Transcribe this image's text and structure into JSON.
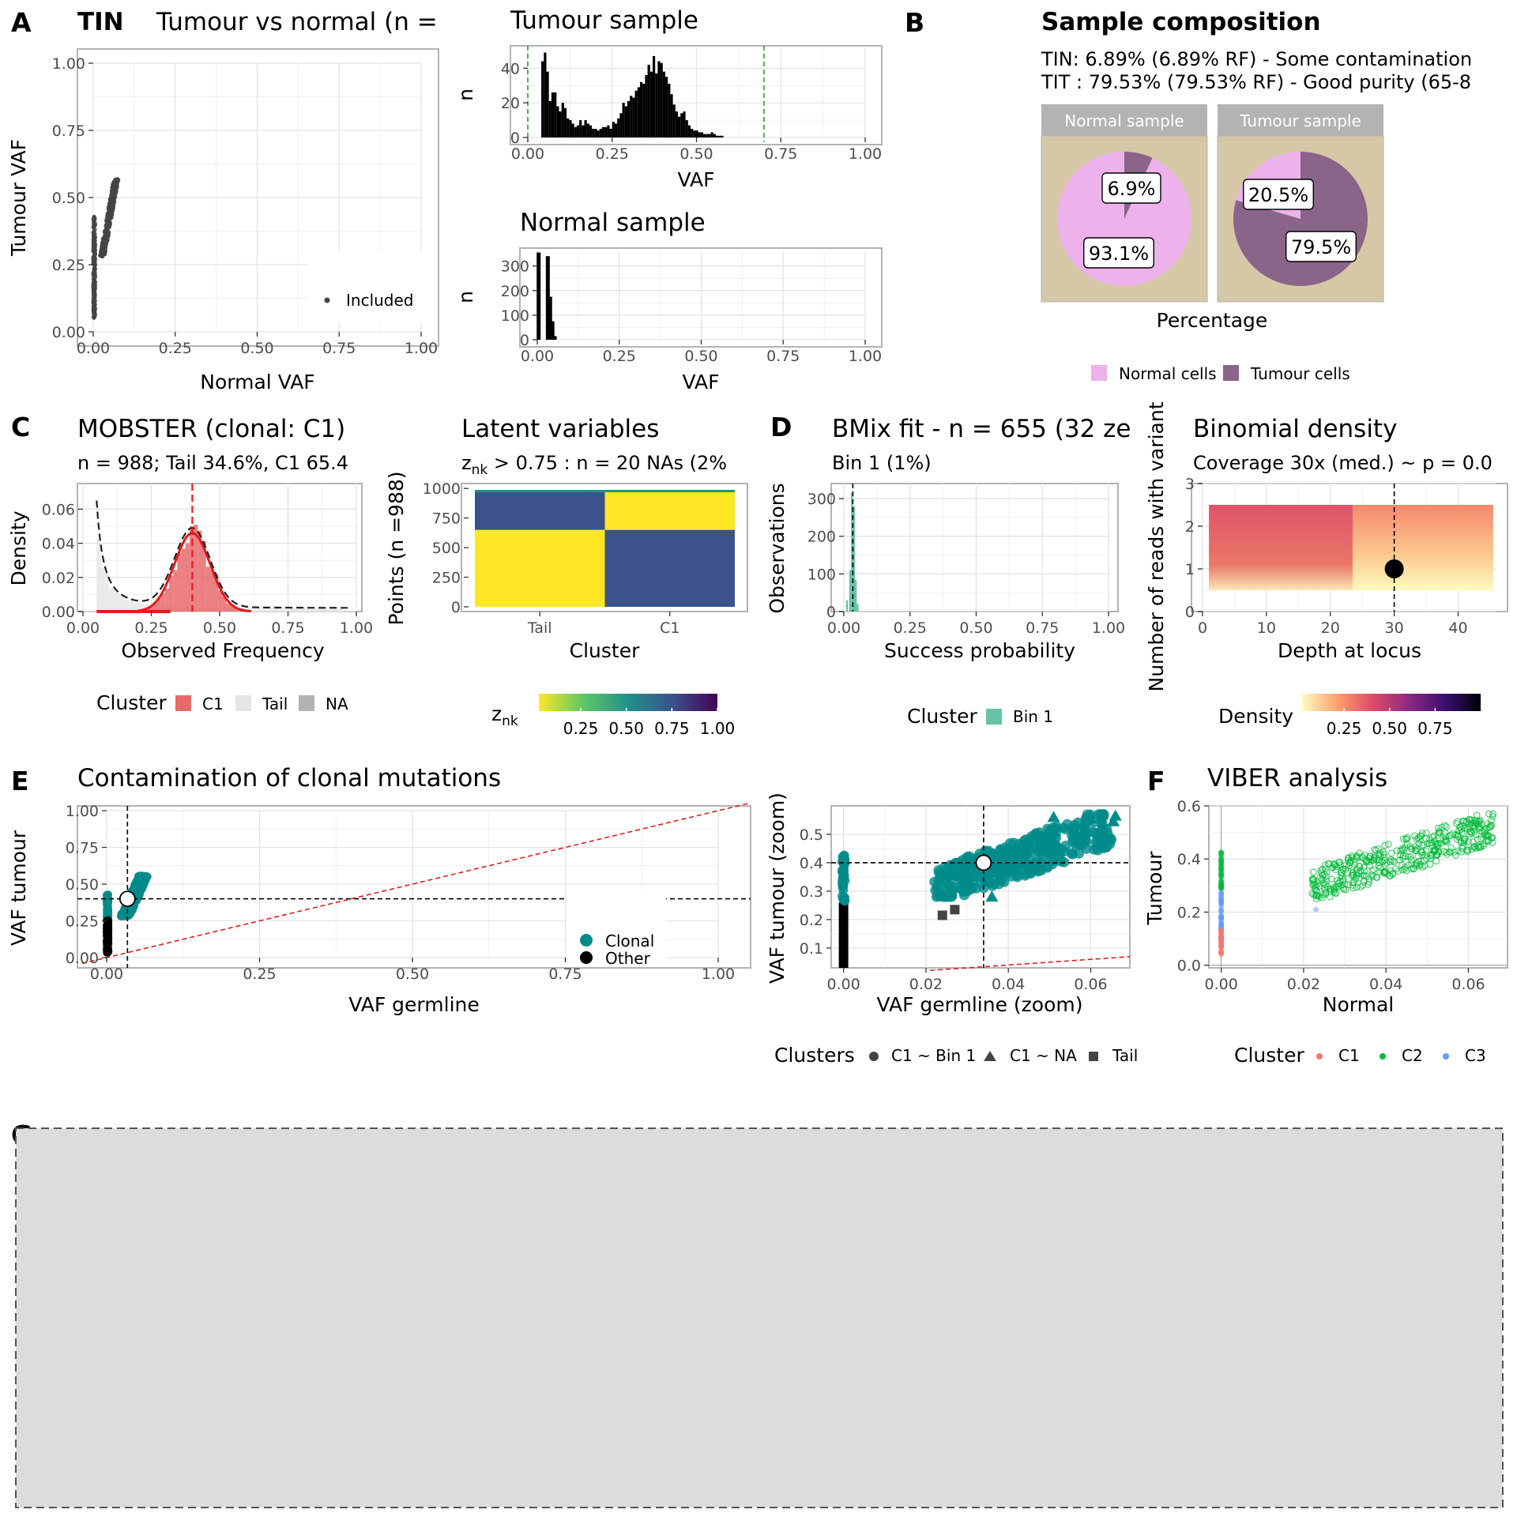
{
  "panel_tags": [
    "A",
    "B",
    "C",
    "D",
    "E",
    "F",
    "G"
  ],
  "chart_data": [
    {
      "id": "A1",
      "type": "scatter",
      "tag_label": "TIN",
      "title": "Tumour vs normal (n =",
      "xlabel": "Normal VAF",
      "ylabel": "Tumour VAF",
      "xlim": [
        0,
        1
      ],
      "ylim": [
        0,
        1
      ],
      "xticks": [
        "0.00",
        "0.25",
        "0.50",
        "0.75",
        "1.00"
      ],
      "yticks": [
        "0.00",
        "0.25",
        "0.50",
        "0.75",
        "1.00"
      ],
      "grid": true,
      "legend_entries": [
        "Included"
      ],
      "legend_position": "bottom-right",
      "point_color": "#444444",
      "point_groups": [
        {
          "x_range": [
            0.0,
            0.006
          ],
          "y_range": [
            0.05,
            0.43
          ],
          "n": 260
        },
        {
          "x_range": [
            0.02,
            0.07
          ],
          "y_range": [
            0.28,
            0.57
          ],
          "n": 420
        }
      ]
    },
    {
      "id": "A2",
      "type": "bar",
      "title": "Tumour sample",
      "xlabel": "VAF",
      "ylabel": "n",
      "xlim": [
        0,
        1
      ],
      "ylim": [
        0,
        52
      ],
      "xticks": [
        "0.00",
        "0.25",
        "0.50",
        "0.75",
        "1.00"
      ],
      "yticks": [
        "0",
        "20",
        "40"
      ],
      "grid": true,
      "vlines": [
        0.0,
        0.7
      ],
      "vline_color": "#2ca02c",
      "bar_color": "#000000",
      "bin_start": 0.04,
      "bin_width": 0.0075,
      "values": [
        44,
        49,
        38,
        21,
        26,
        26,
        18,
        15,
        20,
        17,
        11,
        10,
        8,
        6,
        7,
        10,
        7,
        10,
        8,
        7,
        5,
        5,
        4,
        5,
        6,
        6,
        7,
        5,
        9,
        8,
        11,
        14,
        20,
        18,
        21,
        24,
        23,
        27,
        29,
        32,
        31,
        36,
        42,
        38,
        47,
        37,
        44,
        43,
        38,
        35,
        31,
        25,
        19,
        15,
        12,
        14,
        15,
        10,
        7,
        5,
        4,
        4,
        3,
        3,
        2,
        2,
        2,
        3,
        2,
        1,
        1,
        1
      ]
    },
    {
      "id": "A3",
      "type": "bar",
      "title": "Normal sample",
      "xlabel": "VAF",
      "ylabel": "n",
      "xlim": [
        0,
        1
      ],
      "ylim": [
        0,
        360
      ],
      "xticks": [
        "0.00",
        "0.25",
        "0.50",
        "0.75",
        "1.00"
      ],
      "yticks": [
        "0",
        "100",
        "200",
        "300"
      ],
      "grid": true,
      "bar_color": "#000000",
      "bars": [
        {
          "x": 0.003,
          "value": 355
        },
        {
          "x": 0.017,
          "value": 0
        },
        {
          "x": 0.031,
          "value": 340
        },
        {
          "x": 0.038,
          "value": 175
        },
        {
          "x": 0.045,
          "value": 75
        },
        {
          "x": 0.052,
          "value": 15
        }
      ]
    },
    {
      "id": "B",
      "type": "pie",
      "title": "Sample composition",
      "subtitle_lines": [
        "TIN: 6.89% (6.89% RF) - Some contamination",
        "TIT : 79.53% (79.53% RF) - Good purity (65-8"
      ],
      "xlabel": "Percentage",
      "legend_entries": [
        {
          "label": "Normal cells",
          "color": "#EDB1EC"
        },
        {
          "label": "Tumour cells",
          "color": "#8A6489"
        }
      ],
      "legend_position": "bottom",
      "facets": [
        {
          "name": "Normal sample",
          "slices": [
            {
              "label": "Tumour cells",
              "value": 6.9,
              "text": "6.9%"
            },
            {
              "label": "Normal cells",
              "value": 93.1,
              "text": "93.1%"
            }
          ]
        },
        {
          "name": "Tumour sample",
          "slices": [
            {
              "label": "Tumour cells",
              "value": 79.5,
              "text": "79.5%"
            },
            {
              "label": "Normal cells",
              "value": 20.5,
              "text": "20.5%"
            }
          ]
        }
      ],
      "panel_background": "#D6C7A7",
      "strip_color": "#B3B3B3"
    },
    {
      "id": "C1",
      "type": "area",
      "title": "MOBSTER (clonal: C1)",
      "subtitle": "n = 988; Tail 34.6%, C1 65.4",
      "xlabel": "Observed Frequency",
      "ylabel": "Density",
      "xlim": [
        0,
        1
      ],
      "ylim": [
        0,
        0.075
      ],
      "xticks": [
        "0.00",
        "0.25",
        "0.50",
        "0.75",
        "1.00"
      ],
      "yticks": [
        "0.00",
        "0.02",
        "0.04",
        "0.06"
      ],
      "grid": true,
      "vline": 0.4,
      "vline_color": "#e41a1c",
      "legend_title": "Cluster",
      "legend_entries": [
        {
          "label": "C1",
          "color": "#E8696B"
        },
        {
          "label": "Tail",
          "color": "#E6E6E6"
        },
        {
          "label": "NA",
          "color": "#B3B3B3"
        }
      ],
      "legend_position": "bottom",
      "tail": {
        "x_min": 0.05,
        "scale": 0.07
      },
      "c1": {
        "mean": 0.4,
        "sd": 0.065,
        "peak": 0.046
      }
    },
    {
      "id": "C2",
      "type": "heatmap",
      "title": "Latent variables",
      "subtitle_main": "z",
      "subtitle_sub": "nk",
      "subtitle_rest": " > 0.75 : n = 20  NAs (2%",
      "xlabel": "Cluster",
      "ylabel": "Points (n =988)",
      "categories": [
        "Tail",
        "C1"
      ],
      "ylim": [
        0,
        988
      ],
      "yticks": [
        "0",
        "250",
        "500",
        "750",
        "1000"
      ],
      "legend_title_main": "z",
      "legend_title_sub": "nk",
      "legend_ticks": [
        "0.25",
        "0.50",
        "0.75",
        "1.00"
      ],
      "colorbar": [
        "#FDE725",
        "#5DC863",
        "#21908C",
        "#3B528B",
        "#440154"
      ],
      "blocks": [
        {
          "rows": [
            0,
            650
          ],
          "values": [
            0.02,
            0.98
          ]
        },
        {
          "rows": [
            650,
            968
          ],
          "values": [
            0.98,
            0.02
          ]
        },
        {
          "rows": [
            968,
            988
          ],
          "values": [
            0.5,
            0.5
          ]
        }
      ]
    },
    {
      "id": "D1",
      "type": "bar",
      "title": "BMix fit - n = 655 (32 ze",
      "subtitle": "Bin 1 (1%)",
      "xlabel": "Success probability",
      "ylabel": "Observations",
      "xlim": [
        0,
        1
      ],
      "ylim": [
        0,
        340
      ],
      "xticks": [
        "0.00",
        "0.25",
        "0.50",
        "0.75",
        "1.00"
      ],
      "yticks": [
        "0",
        "100",
        "200",
        "300"
      ],
      "grid": true,
      "vline": 0.034,
      "bar_color": "#66C2A5",
      "legend_title": "Cluster",
      "legend_entries": [
        {
          "label": "Bin 1",
          "color": "#66C2A5"
        }
      ],
      "legend_position": "bottom",
      "bars": [
        {
          "x": 0.012,
          "value": 30
        },
        {
          "x": 0.024,
          "value": 110
        },
        {
          "x": 0.031,
          "value": 315
        },
        {
          "x": 0.038,
          "value": 280
        },
        {
          "x": 0.045,
          "value": 85
        },
        {
          "x": 0.052,
          "value": 20
        }
      ]
    },
    {
      "id": "D2",
      "type": "heatmap",
      "title": "Binomial density",
      "subtitle": "Coverage 30x (med.) ~ p = 0.0",
      "xlabel": "Depth at locus",
      "ylabel": "Number of reads with variant",
      "xlim": [
        0,
        46
      ],
      "ylim": [
        0,
        3
      ],
      "xticks": [
        "0",
        "10",
        "20",
        "30",
        "40"
      ],
      "yticks": [
        "0",
        "1",
        "2",
        "3"
      ],
      "grid": true,
      "point": {
        "x": 30,
        "y": 1
      },
      "vline": 30,
      "legend_title": "Density",
      "legend_ticks": [
        "0.25",
        "0.50",
        "0.75"
      ],
      "colorbar": [
        "#FCFDBF",
        "#FE9F6D",
        "#DE4968",
        "#8C2981",
        "#3B0F70",
        "#000004"
      ],
      "legend_position": "bottom"
    },
    {
      "id": "E1",
      "type": "scatter",
      "title": "Contamination of clonal mutations",
      "xlabel": "VAF germline",
      "ylabel": "VAF tumour",
      "xlim": [
        0,
        1
      ],
      "ylim": [
        0,
        1
      ],
      "xticks": [
        "0.00",
        "0.25",
        "0.50",
        "0.75",
        "1.00"
      ],
      "yticks": [
        "0.00",
        "0.25",
        "0.50",
        "0.75",
        "1.00"
      ],
      "grid": true,
      "hline": 0.4,
      "vline": 0.034,
      "diagonal": true,
      "centroid": {
        "x": 0.034,
        "y": 0.4
      },
      "legend_entries": [
        {
          "label": "Clonal",
          "color": "#008B8B"
        },
        {
          "label": "Other",
          "color": "#000000"
        }
      ],
      "legend_position": "inside-right",
      "point_groups": [
        {
          "cls": "Clonal",
          "x_range": [
            0.0,
            0.003
          ],
          "y_range": [
            0.26,
            0.43
          ],
          "n": 80
        },
        {
          "cls": "Other",
          "x_range": [
            0.0,
            0.003
          ],
          "y_range": [
            0.03,
            0.26
          ],
          "n": 120
        },
        {
          "cls": "Clonal",
          "x_range": [
            0.022,
            0.065
          ],
          "y_range": [
            0.28,
            0.56
          ],
          "n": 320
        }
      ]
    },
    {
      "id": "E2",
      "type": "scatter",
      "title": "",
      "xlabel": "VAF germline (zoom)",
      "ylabel": "VAF tumour (zoom)",
      "xlim": [
        -0.003,
        0.0695
      ],
      "ylim": [
        0.03,
        0.6
      ],
      "xticks": [
        "0.00",
        "0.02",
        "0.04",
        "0.06"
      ],
      "yticks": [
        "0.1",
        "0.2",
        "0.3",
        "0.4",
        "0.5"
      ],
      "grid": true,
      "hline": 0.4,
      "vline": 0.034,
      "diagonal": true,
      "centroid": {
        "x": 0.034,
        "y": 0.4
      },
      "legend_title": "Clusters",
      "legend_entries": [
        {
          "label": "C1 ~ Bin 1",
          "shape": "circle"
        },
        {
          "label": "C1 ~ NA",
          "shape": "triangle"
        },
        {
          "label": "Tail",
          "shape": "square"
        }
      ],
      "legend_position": "bottom",
      "triangles": [
        {
          "x": 0.051,
          "y": 0.56
        },
        {
          "x": 0.06,
          "y": 0.555
        },
        {
          "x": 0.066,
          "y": 0.565
        },
        {
          "x": 0.0655,
          "y": 0.545
        },
        {
          "x": 0.036,
          "y": 0.28
        }
      ],
      "squares": [
        {
          "x": 0.024,
          "y": 0.215
        },
        {
          "x": 0.027,
          "y": 0.235
        }
      ]
    },
    {
      "id": "F",
      "type": "scatter",
      "title": "VIBER analysis",
      "xlabel": "Normal",
      "ylabel": "Tumour",
      "xlim": [
        -0.003,
        0.0695
      ],
      "ylim": [
        -0.01,
        0.6
      ],
      "xticks": [
        "0.00",
        "0.02",
        "0.04",
        "0.06"
      ],
      "yticks": [
        "0.0",
        "0.2",
        "0.4",
        "0.6"
      ],
      "grid": true,
      "legend_title": "Cluster",
      "legend_entries": [
        {
          "label": "C1",
          "color": "#F8766D"
        },
        {
          "label": "C2",
          "color": "#00BA38"
        },
        {
          "label": "C3",
          "color": "#619CFF"
        }
      ],
      "legend_position": "bottom"
    }
  ]
}
